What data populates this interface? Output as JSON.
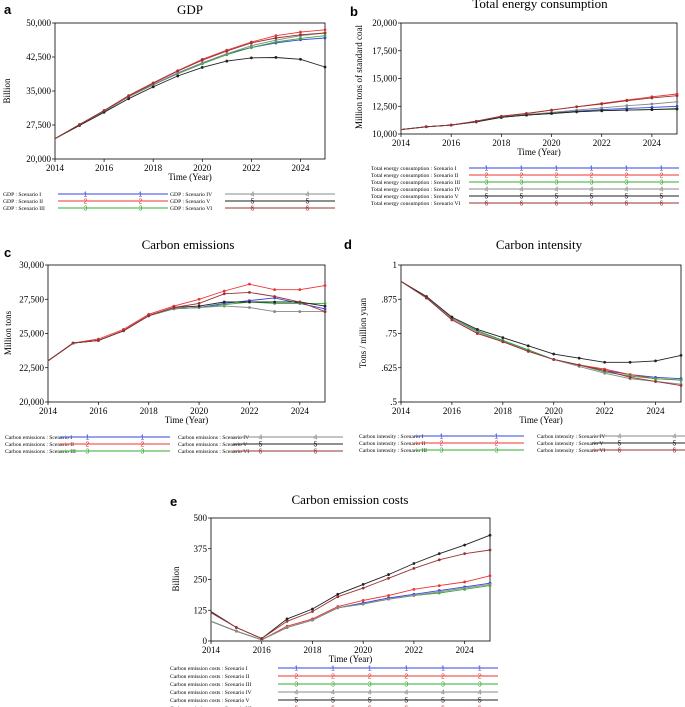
{
  "figure": {
    "colors": {
      "Scenario I": "#3344dd",
      "Scenario II": "#ee3333",
      "Scenario III": "#33aa33",
      "Scenario IV": "#888888",
      "Scenario V": "#222222",
      "Scenario VI": "#993333"
    }
  },
  "chart_data": [
    {
      "id": "a",
      "letter": "a",
      "type": "line",
      "title": "GDP",
      "xlabel": "Time (Year)",
      "ylabel": "Billion",
      "xlim": [
        2014,
        2025
      ],
      "ylim": [
        20000,
        50000
      ],
      "xticks": [
        2014,
        2016,
        2018,
        2020,
        2022,
        2024
      ],
      "yticks": [
        20000,
        27500,
        35000,
        42500,
        50000
      ],
      "ytick_labels": [
        "20,000",
        "27,500",
        "35,000",
        "42,500",
        "50,000"
      ],
      "legend_prefix": "GDP",
      "x": [
        2014,
        2015,
        2016,
        2017,
        2018,
        2019,
        2020,
        2021,
        2022,
        2023,
        2024,
        2025
      ],
      "series": [
        {
          "name": "Scenario I",
          "marker": "1",
          "values": [
            24500,
            27500,
            30500,
            33800,
            36400,
            39000,
            41200,
            43200,
            44600,
            45600,
            46300,
            46700
          ]
        },
        {
          "name": "Scenario II",
          "marker": "2",
          "values": [
            24500,
            27600,
            30700,
            34000,
            36800,
            39500,
            42000,
            44000,
            45800,
            47200,
            48000,
            48500
          ]
        },
        {
          "name": "Scenario III",
          "marker": "3",
          "values": [
            24500,
            27500,
            30500,
            33800,
            36400,
            38800,
            41000,
            43000,
            44600,
            45800,
            46600,
            47200
          ]
        },
        {
          "name": "Scenario IV",
          "marker": "4",
          "values": [
            24500,
            27500,
            30500,
            33700,
            36300,
            38900,
            41200,
            43200,
            45000,
            46200,
            47200,
            47800
          ]
        },
        {
          "name": "Scenario V",
          "marker": "5",
          "values": [
            24500,
            27400,
            30300,
            33300,
            35900,
            38300,
            40200,
            41600,
            42300,
            42400,
            42000,
            40300
          ]
        },
        {
          "name": "Scenario VI",
          "marker": "6",
          "values": [
            24500,
            27600,
            30700,
            33900,
            36700,
            39400,
            41800,
            43800,
            45600,
            46700,
            47400,
            47800
          ]
        }
      ]
    },
    {
      "id": "b",
      "letter": "b",
      "type": "line",
      "title": "Total energy consumption",
      "xlabel": "Time (Year)",
      "ylabel": "Million tons of standard coal",
      "xlim": [
        2014,
        2025
      ],
      "ylim": [
        10000,
        20000
      ],
      "xticks": [
        2014,
        2016,
        2018,
        2020,
        2022,
        2024
      ],
      "yticks": [
        10000,
        12500,
        15000,
        17500,
        20000
      ],
      "ytick_labels": [
        "10,000",
        "12,500",
        "15,000",
        "17,500",
        "20,000"
      ],
      "legend_prefix": "Total energy consumption",
      "x": [
        2014,
        2015,
        2016,
        2017,
        2018,
        2019,
        2020,
        2021,
        2022,
        2023,
        2024,
        2025
      ],
      "series": [
        {
          "name": "Scenario I",
          "marker": "1",
          "values": [
            10400,
            10650,
            10800,
            11100,
            11500,
            11700,
            11900,
            12050,
            12200,
            12300,
            12400,
            12500
          ]
        },
        {
          "name": "Scenario II",
          "marker": "2",
          "values": [
            10400,
            10650,
            10800,
            11150,
            11600,
            11850,
            12150,
            12450,
            12750,
            13050,
            13350,
            13600
          ]
        },
        {
          "name": "Scenario III",
          "marker": "3",
          "values": [
            10400,
            10650,
            10800,
            11100,
            11500,
            11700,
            11850,
            12000,
            12100,
            12150,
            12200,
            12300
          ]
        },
        {
          "name": "Scenario IV",
          "marker": "4",
          "values": [
            10400,
            10650,
            10800,
            11100,
            11500,
            11750,
            11950,
            12150,
            12350,
            12550,
            12700,
            12900
          ]
        },
        {
          "name": "Scenario V",
          "marker": "5",
          "values": [
            10400,
            10650,
            10800,
            11100,
            11500,
            11700,
            11850,
            12000,
            12100,
            12150,
            12200,
            12250
          ]
        },
        {
          "name": "Scenario VI",
          "marker": "6",
          "values": [
            10400,
            10650,
            10800,
            11150,
            11600,
            11850,
            12150,
            12450,
            12700,
            13000,
            13250,
            13450
          ]
        }
      ]
    },
    {
      "id": "c",
      "letter": "c",
      "type": "line",
      "title": "Carbon emissions",
      "xlabel": "Time (Year)",
      "ylabel": "Million tons",
      "xlim": [
        2014,
        2025
      ],
      "ylim": [
        20000,
        30000
      ],
      "xticks": [
        2014,
        2016,
        2018,
        2020,
        2022,
        2024
      ],
      "yticks": [
        20000,
        22500,
        25000,
        27500,
        30000
      ],
      "ytick_labels": [
        "20,000",
        "22,500",
        "25,000",
        "27,500",
        "30,000"
      ],
      "legend_prefix": "Carbon emissions",
      "x": [
        2014,
        2015,
        2016,
        2017,
        2018,
        2019,
        2020,
        2021,
        2022,
        2023,
        2024,
        2025
      ],
      "series": [
        {
          "name": "Scenario I",
          "marker": "1",
          "values": [
            23000,
            24300,
            24500,
            25200,
            26300,
            26800,
            26900,
            27200,
            27400,
            27600,
            27200,
            26800
          ]
        },
        {
          "name": "Scenario II",
          "marker": "2",
          "values": [
            23000,
            24300,
            24600,
            25300,
            26400,
            27000,
            27500,
            28100,
            28600,
            28200,
            28200,
            28500
          ]
        },
        {
          "name": "Scenario III",
          "marker": "3",
          "values": [
            23000,
            24300,
            24500,
            25200,
            26300,
            26800,
            26900,
            27100,
            27300,
            27200,
            27200,
            27200
          ]
        },
        {
          "name": "Scenario IV",
          "marker": "4",
          "values": [
            23000,
            24300,
            24500,
            25200,
            26300,
            26800,
            26900,
            27000,
            26900,
            26600,
            26600,
            26600
          ]
        },
        {
          "name": "Scenario V",
          "marker": "5",
          "values": [
            23000,
            24300,
            24500,
            25200,
            26300,
            26900,
            27000,
            27300,
            27300,
            27300,
            27300,
            27000
          ]
        },
        {
          "name": "Scenario VI",
          "marker": "6",
          "values": [
            23000,
            24300,
            24500,
            25200,
            26300,
            26900,
            27200,
            27900,
            28000,
            27700,
            27300,
            26600
          ]
        }
      ]
    },
    {
      "id": "d",
      "letter": "d",
      "type": "line",
      "title": "Carbon intensity",
      "xlabel": "Time (Year)",
      "ylabel": "Tons / million yuan",
      "xlim": [
        2014,
        2025
      ],
      "ylim": [
        0.5,
        1.0
      ],
      "xticks": [
        2014,
        2016,
        2018,
        2020,
        2022,
        2024
      ],
      "yticks": [
        0.5,
        0.625,
        0.75,
        0.875,
        1.0
      ],
      "ytick_labels": [
        ".5",
        ".625",
        ".75",
        ".875",
        "1"
      ],
      "legend_prefix": "Carbon intensity",
      "x": [
        2014,
        2015,
        2016,
        2017,
        2018,
        2019,
        2020,
        2021,
        2022,
        2023,
        2024,
        2025
      ],
      "series": [
        {
          "name": "Scenario I",
          "marker": "1",
          "values": [
            0.94,
            0.88,
            0.805,
            0.76,
            0.725,
            0.69,
            0.655,
            0.635,
            0.615,
            0.6,
            0.59,
            0.585
          ]
        },
        {
          "name": "Scenario II",
          "marker": "2",
          "values": [
            0.94,
            0.88,
            0.8,
            0.75,
            0.72,
            0.685,
            0.655,
            0.635,
            0.62,
            0.6,
            0.585,
            0.58
          ]
        },
        {
          "name": "Scenario III",
          "marker": "3",
          "values": [
            0.94,
            0.88,
            0.805,
            0.76,
            0.725,
            0.69,
            0.655,
            0.635,
            0.61,
            0.595,
            0.585,
            0.58
          ]
        },
        {
          "name": "Scenario IV",
          "marker": "4",
          "values": [
            0.94,
            0.88,
            0.805,
            0.755,
            0.72,
            0.685,
            0.655,
            0.63,
            0.605,
            0.585,
            0.575,
            0.565
          ]
        },
        {
          "name": "Scenario V",
          "marker": "5",
          "values": [
            0.94,
            0.885,
            0.81,
            0.765,
            0.735,
            0.705,
            0.675,
            0.66,
            0.645,
            0.645,
            0.65,
            0.67
          ]
        },
        {
          "name": "Scenario VI",
          "marker": "6",
          "values": [
            0.94,
            0.88,
            0.8,
            0.75,
            0.72,
            0.685,
            0.655,
            0.635,
            0.615,
            0.59,
            0.575,
            0.56
          ]
        }
      ]
    },
    {
      "id": "e",
      "letter": "e",
      "type": "line",
      "title": "Carbon emission costs",
      "xlabel": "Time (Year)",
      "ylabel": "Billion",
      "xlim": [
        2014,
        2025
      ],
      "ylim": [
        0,
        500
      ],
      "xticks": [
        2014,
        2016,
        2018,
        2020,
        2022,
        2024
      ],
      "yticks": [
        0,
        125,
        250,
        375,
        500
      ],
      "ytick_labels": [
        "0",
        "125",
        "250",
        "375",
        "500"
      ],
      "legend_prefix": "Carbon emission costs",
      "x": [
        2014,
        2015,
        2016,
        2017,
        2018,
        2019,
        2020,
        2021,
        2022,
        2023,
        2024,
        2025
      ],
      "series": [
        {
          "name": "Scenario I",
          "marker": "1",
          "values": [
            80,
            40,
            5,
            55,
            85,
            135,
            155,
            175,
            190,
            205,
            220,
            235
          ]
        },
        {
          "name": "Scenario II",
          "marker": "2",
          "values": [
            80,
            40,
            5,
            60,
            90,
            140,
            165,
            185,
            210,
            225,
            240,
            265
          ]
        },
        {
          "name": "Scenario III",
          "marker": "3",
          "values": [
            80,
            40,
            5,
            55,
            85,
            135,
            150,
            170,
            185,
            195,
            210,
            225
          ]
        },
        {
          "name": "Scenario IV",
          "marker": "4",
          "values": [
            80,
            40,
            5,
            55,
            85,
            135,
            150,
            170,
            185,
            200,
            215,
            230
          ]
        },
        {
          "name": "Scenario V",
          "marker": "5",
          "values": [
            120,
            55,
            10,
            90,
            130,
            190,
            230,
            270,
            315,
            355,
            390,
            430
          ]
        },
        {
          "name": "Scenario VI",
          "marker": "6",
          "values": [
            115,
            55,
            10,
            80,
            120,
            180,
            215,
            255,
            295,
            330,
            355,
            370
          ]
        }
      ]
    }
  ]
}
